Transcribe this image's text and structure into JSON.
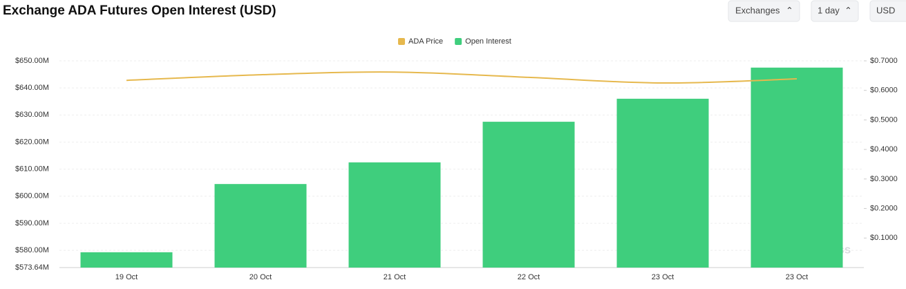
{
  "controls": [
    "Exchanges",
    "1 day",
    "USD"
  ],
  "watermark": "coinglass",
  "chart_data": {
    "type": "bar-line",
    "title": "Exchange ADA Futures Open Interest (USD)",
    "categories": [
      "19 Oct",
      "20 Oct",
      "21 Oct",
      "22 Oct",
      "23 Oct",
      "23 Oct"
    ],
    "series": [
      {
        "name": "ADA Price",
        "color": "#e6b84d",
        "type": "line",
        "axis": "y2",
        "values": [
          0.634,
          0.653,
          0.662,
          0.644,
          0.625,
          0.639
        ]
      },
      {
        "name": "Open Interest",
        "color": "#3fce7d",
        "type": "bar",
        "values": [
          579.3,
          604.5,
          612.5,
          627.5,
          636,
          647.5
        ]
      }
    ],
    "ylim": [
      573.64,
      650
    ],
    "yticks": [
      {
        "value": 573.64,
        "label": "$573.64M"
      },
      {
        "value": 580,
        "label": "$580.00M"
      },
      {
        "value": 590,
        "label": "$590.00M"
      },
      {
        "value": 600,
        "label": "$600.00M"
      },
      {
        "value": 610,
        "label": "$610.00M"
      },
      {
        "value": 620,
        "label": "$620.00M"
      },
      {
        "value": 630,
        "label": "$630.00M"
      },
      {
        "value": 640,
        "label": "$640.00M"
      },
      {
        "value": 650,
        "label": "$650.00M"
      }
    ],
    "y2lim": [
      0,
      0.7
    ],
    "y2ticks": [
      {
        "value": 0.1,
        "label": "$0.1000"
      },
      {
        "value": 0.2,
        "label": "$0.2000"
      },
      {
        "value": 0.3,
        "label": "$0.3000"
      },
      {
        "value": 0.4,
        "label": "$0.4000"
      },
      {
        "value": 0.5,
        "label": "$0.5000"
      },
      {
        "value": 0.6,
        "label": "$0.6000"
      },
      {
        "value": 0.7,
        "label": "$0.7000"
      }
    ],
    "grid": true
  }
}
